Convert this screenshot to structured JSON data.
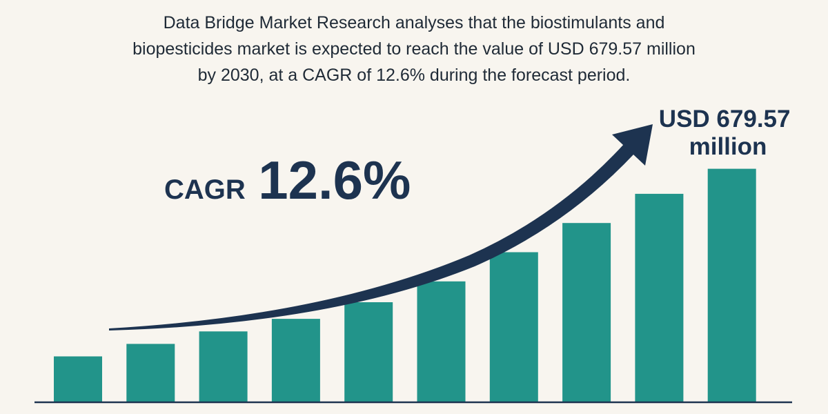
{
  "headline": {
    "line1": "Data Bridge Market Research analyses that the biostimulants and",
    "line2": "biopesticides market is expected to reach the value of USD 679.57 million",
    "line3": "by 2030, at a CAGR of 12.6% during the forecast period."
  },
  "colors": {
    "background": "#f8f5ef",
    "bar": "#22948a",
    "arrow": "#1d3350",
    "text": "#1d3350"
  },
  "chart_data": {
    "type": "bar",
    "title": "",
    "xlabel": "",
    "ylabel": "",
    "categories": [
      "",
      "",
      "",
      "",
      "",
      "",
      "",
      "",
      "",
      ""
    ],
    "values": [
      11,
      14,
      17,
      20,
      24,
      29,
      36,
      43,
      50,
      56
    ],
    "ylim": [
      0,
      70
    ],
    "grid": false,
    "cagr_prefix": "CAGR",
    "cagr_value": "12.6%",
    "end_value_line1": "USD 679.57",
    "end_value_line2": "million"
  }
}
